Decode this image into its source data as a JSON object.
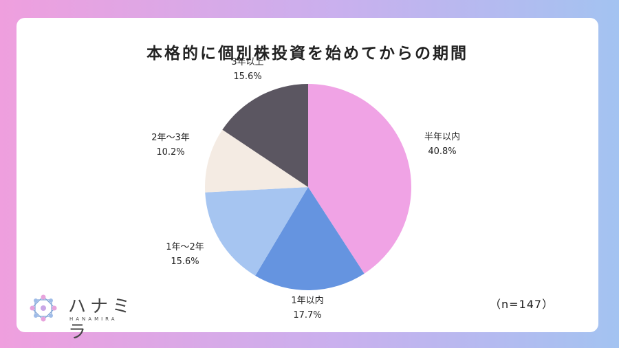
{
  "title": "本格的に個別株投資を始めてからの期間",
  "sample_size": "（n=147）",
  "logo": {
    "text": "ハナミラ",
    "subtext": "HANAMIRA"
  },
  "colors": {
    "background_left": "#ef9fde",
    "background_right": "#a3c3f1"
  },
  "chart_data": {
    "type": "pie",
    "title": "本格的に個別株投資を始めてからの期間",
    "slices": [
      {
        "label": "半年以内",
        "value": 40.8,
        "value_label": "40.8%",
        "color": "#f0a3e5"
      },
      {
        "label": "1年以内",
        "value": 17.7,
        "value_label": "17.7%",
        "color": "#6594e0"
      },
      {
        "label": "1年～2年",
        "value": 15.6,
        "value_label": "15.6%",
        "color": "#a6c5f1"
      },
      {
        "label": "2年～3年",
        "value": 10.2,
        "value_label": "10.2%",
        "color": "#f4ebe3"
      },
      {
        "label": "3年以上",
        "value": 15.6,
        "value_label": "15.6%",
        "color": "#5b5661"
      }
    ],
    "start": "12 o'clock",
    "direction": "clockwise",
    "legend": "none (labels placed outside slices)"
  }
}
